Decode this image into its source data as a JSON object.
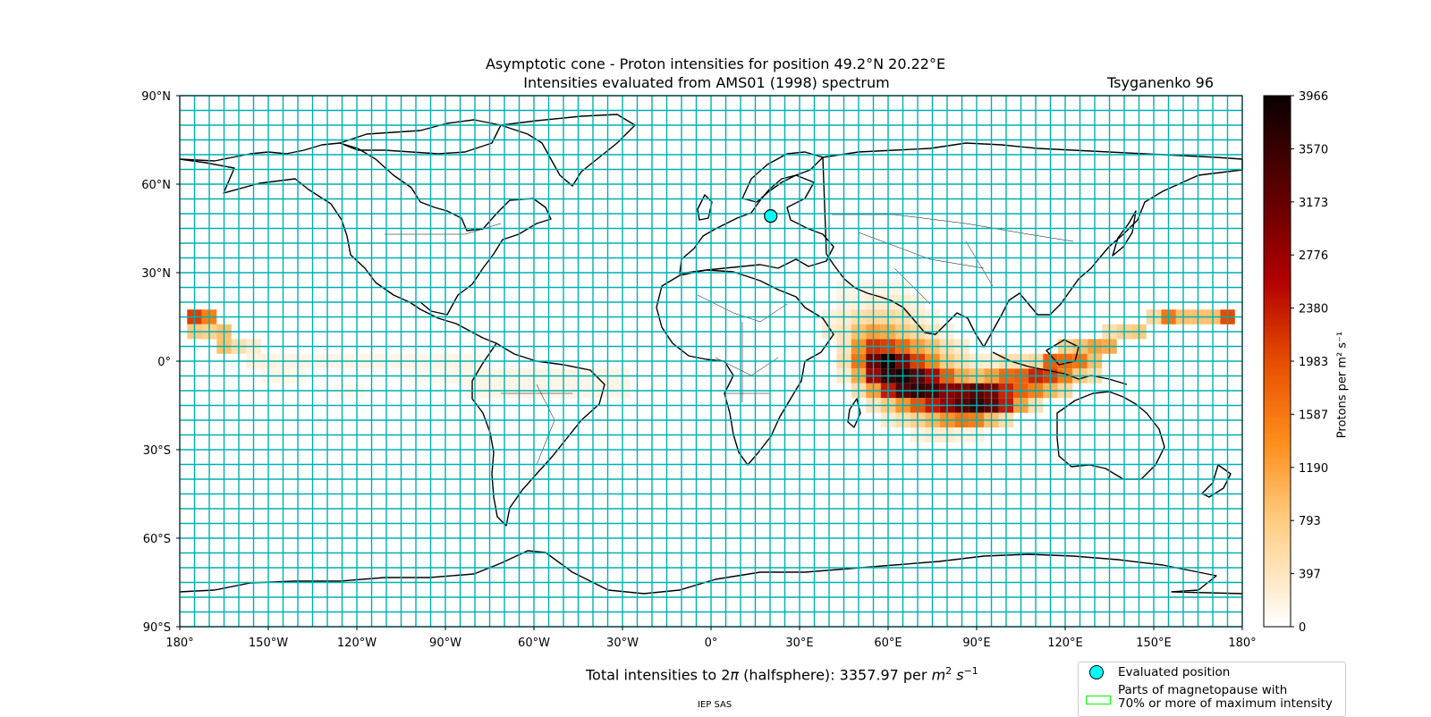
{
  "title_line1": "Asymptotic cone - Proton intensities for position 49.2°N 20.22°E",
  "title_line2": "Intensities evaluated from AMS01 (1998) spectrum",
  "model": "Tsyganenko 96",
  "total_intensity": {
    "prefix": "Total intensities to 2",
    "pi": "π",
    "middle": " (halfsphere): 3357.97 per ",
    "unit_m": "m",
    "unit_m_exp": "2",
    "unit_s": " s",
    "unit_s_exp": "−1"
  },
  "credit": "IEP SAS",
  "legend": {
    "evaluated_position": "Evaluated position",
    "magnetopause_line1": "Parts of magnetopause with",
    "magnetopause_line2": "70% or more of maximum intensity"
  },
  "colorbar": {
    "label": "Protons per m² s⁻¹",
    "ticks": [
      "0",
      "397",
      "793",
      "1190",
      "1587",
      "1983",
      "2380",
      "2776",
      "3173",
      "3570",
      "3966"
    ],
    "min": 0,
    "max": 3966,
    "colormap": "gist_heat_r"
  },
  "axes": {
    "lon_ticks": [
      "180°",
      "150°W",
      "120°W",
      "90°W",
      "60°W",
      "30°W",
      "0°",
      "30°E",
      "60°E",
      "90°E",
      "120°E",
      "150°E",
      "180°"
    ],
    "lat_ticks": [
      "90°N",
      "60°N",
      "30°N",
      "0°",
      "30°S",
      "60°S",
      "90°S"
    ],
    "lon_range": [
      -180,
      180
    ],
    "lat_range": [
      -90,
      90
    ]
  },
  "evaluated_position": {
    "lat": 49.2,
    "lon": 20.22
  },
  "colors": {
    "grid_lines": "#00b0b0",
    "evaluated_marker": "#00ffff",
    "magnetopause_outline": "#00ff00",
    "coastlines": "#000000"
  },
  "intensity_cells": {
    "cell_deg": 5,
    "cells": [
      [
        15,
        -175,
        2100
      ],
      [
        15,
        -170,
        1500
      ],
      [
        15,
        175,
        2000
      ],
      [
        15,
        170,
        900
      ],
      [
        15,
        165,
        900
      ],
      [
        15,
        160,
        900
      ],
      [
        15,
        155,
        1600
      ],
      [
        15,
        150,
        600
      ],
      [
        10,
        -175,
        800
      ],
      [
        10,
        -170,
        1500
      ],
      [
        10,
        -165,
        900
      ],
      [
        10,
        -170,
        700
      ],
      [
        10,
        145,
        800
      ],
      [
        10,
        140,
        700
      ],
      [
        10,
        135,
        500
      ],
      [
        10,
        140,
        700
      ],
      [
        5,
        -165,
        900
      ],
      [
        5,
        -160,
        500
      ],
      [
        5,
        -155,
        300
      ],
      [
        5,
        130,
        1200
      ],
      [
        5,
        125,
        900
      ],
      [
        5,
        120,
        700
      ],
      [
        5,
        135,
        1100
      ],
      [
        0,
        -155,
        200
      ],
      [
        0,
        -150,
        200
      ],
      [
        0,
        -145,
        150
      ],
      [
        0,
        -140,
        150
      ],
      [
        0,
        -135,
        150
      ],
      [
        0,
        -130,
        150
      ],
      [
        0,
        -125,
        150
      ],
      [
        0,
        -120,
        150
      ],
      [
        0,
        -115,
        150
      ],
      [
        0,
        -110,
        150
      ],
      [
        0,
        -105,
        150
      ],
      [
        0,
        -100,
        150
      ],
      [
        0,
        -95,
        150
      ],
      [
        0,
        -90,
        150
      ],
      [
        0,
        -85,
        150
      ],
      [
        0,
        -80,
        150
      ],
      [
        0,
        110,
        600
      ],
      [
        0,
        115,
        1800
      ],
      [
        0,
        120,
        1700
      ],
      [
        0,
        125,
        1600
      ],
      [
        0,
        130,
        900
      ],
      [
        -5,
        -150,
        150
      ],
      [
        -5,
        -145,
        150
      ],
      [
        -5,
        -140,
        100
      ],
      [
        -5,
        -100,
        100
      ],
      [
        -5,
        -95,
        100
      ],
      [
        -5,
        -90,
        120
      ],
      [
        -5,
        -85,
        150
      ],
      [
        -5,
        -80,
        150
      ],
      [
        -5,
        -75,
        150
      ],
      [
        -5,
        -70,
        150
      ],
      [
        -5,
        -65,
        150
      ],
      [
        -5,
        -60,
        150
      ],
      [
        -5,
        -55,
        150
      ],
      [
        -5,
        -50,
        150
      ],
      [
        -5,
        -45,
        150
      ],
      [
        -5,
        -40,
        150
      ],
      [
        -5,
        -35,
        150
      ],
      [
        -5,
        -30,
        150
      ],
      [
        -5,
        100,
        1700
      ],
      [
        -5,
        105,
        1800
      ],
      [
        -5,
        110,
        2300
      ],
      [
        -5,
        115,
        2100
      ],
      [
        -5,
        120,
        1500
      ],
      [
        -5,
        125,
        800
      ],
      [
        -5,
        130,
        500
      ],
      [
        -10,
        -125,
        100
      ],
      [
        -10,
        -120,
        100
      ],
      [
        -10,
        -80,
        150
      ],
      [
        -10,
        -75,
        150
      ],
      [
        -10,
        -70,
        150
      ],
      [
        -10,
        -65,
        150
      ],
      [
        -10,
        -60,
        150
      ],
      [
        -10,
        -55,
        150
      ],
      [
        -10,
        -50,
        150
      ],
      [
        -10,
        -45,
        150
      ],
      [
        -10,
        -40,
        150
      ],
      [
        -10,
        -35,
        150
      ],
      [
        -10,
        -30,
        150
      ],
      [
        25,
        45,
        150
      ],
      [
        25,
        50,
        150
      ],
      [
        25,
        55,
        150
      ],
      [
        25,
        60,
        150
      ],
      [
        25,
        65,
        150
      ],
      [
        20,
        45,
        200
      ],
      [
        20,
        50,
        200
      ],
      [
        20,
        55,
        300
      ],
      [
        20,
        60,
        300
      ],
      [
        20,
        65,
        300
      ],
      [
        20,
        70,
        200
      ],
      [
        15,
        40,
        200
      ],
      [
        15,
        45,
        300
      ],
      [
        15,
        50,
        500
      ],
      [
        15,
        55,
        600
      ],
      [
        15,
        60,
        600
      ],
      [
        15,
        65,
        500
      ],
      [
        15,
        70,
        300
      ],
      [
        15,
        75,
        200
      ],
      [
        10,
        40,
        300
      ],
      [
        10,
        45,
        400
      ],
      [
        10,
        50,
        900
      ],
      [
        10,
        55,
        1200
      ],
      [
        10,
        60,
        1100
      ],
      [
        10,
        65,
        800
      ],
      [
        10,
        70,
        600
      ],
      [
        10,
        75,
        400
      ],
      [
        10,
        80,
        200
      ],
      [
        5,
        45,
        400
      ],
      [
        5,
        50,
        1300
      ],
      [
        5,
        55,
        2200
      ],
      [
        5,
        60,
        2100
      ],
      [
        5,
        65,
        1700
      ],
      [
        5,
        70,
        1200
      ],
      [
        5,
        75,
        900
      ],
      [
        5,
        80,
        500
      ],
      [
        5,
        85,
        300
      ],
      [
        0,
        45,
        500
      ],
      [
        0,
        50,
        1600
      ],
      [
        0,
        55,
        3100
      ],
      [
        0,
        60,
        3900
      ],
      [
        0,
        65,
        3000
      ],
      [
        0,
        70,
        2100
      ],
      [
        0,
        75,
        1400
      ],
      [
        0,
        80,
        800
      ],
      [
        0,
        85,
        500
      ],
      [
        0,
        90,
        300
      ],
      [
        0,
        95,
        300
      ],
      [
        0,
        100,
        500
      ],
      [
        0,
        105,
        500
      ],
      [
        -5,
        45,
        300
      ],
      [
        -5,
        50,
        1100
      ],
      [
        -5,
        55,
        2700
      ],
      [
        -5,
        60,
        3600
      ],
      [
        -5,
        65,
        3800
      ],
      [
        -5,
        70,
        3300
      ],
      [
        -5,
        75,
        2600
      ],
      [
        -5,
        80,
        1800
      ],
      [
        -5,
        85,
        1100
      ],
      [
        -5,
        90,
        900
      ],
      [
        -5,
        95,
        1200
      ],
      [
        -10,
        50,
        500
      ],
      [
        -10,
        55,
        1200
      ],
      [
        -10,
        60,
        2400
      ],
      [
        -10,
        65,
        3300
      ],
      [
        -10,
        70,
        3600
      ],
      [
        -10,
        75,
        3400
      ],
      [
        -10,
        80,
        2900
      ],
      [
        -10,
        85,
        3000
      ],
      [
        -10,
        90,
        3300
      ],
      [
        -10,
        95,
        3000
      ],
      [
        -10,
        100,
        2300
      ],
      [
        -10,
        105,
        1800
      ],
      [
        -10,
        110,
        1500
      ],
      [
        -10,
        115,
        1000
      ],
      [
        -10,
        120,
        600
      ],
      [
        -15,
        55,
        400
      ],
      [
        -15,
        60,
        800
      ],
      [
        -15,
        65,
        1300
      ],
      [
        -15,
        70,
        1900
      ],
      [
        -15,
        75,
        2400
      ],
      [
        -15,
        80,
        2800
      ],
      [
        -15,
        85,
        3300
      ],
      [
        -15,
        90,
        3600
      ],
      [
        -15,
        95,
        3200
      ],
      [
        -15,
        100,
        2400
      ],
      [
        -15,
        105,
        1200
      ],
      [
        -15,
        110,
        500
      ],
      [
        -20,
        60,
        300
      ],
      [
        -20,
        65,
        500
      ],
      [
        -20,
        70,
        700
      ],
      [
        -20,
        75,
        1000
      ],
      [
        -20,
        80,
        1300
      ],
      [
        -20,
        85,
        1600
      ],
      [
        -20,
        90,
        1500
      ],
      [
        -20,
        95,
        900
      ],
      [
        -20,
        100,
        500
      ],
      [
        -25,
        70,
        200
      ],
      [
        -25,
        75,
        300
      ],
      [
        -25,
        80,
        300
      ],
      [
        -25,
        85,
        200
      ],
      [
        -25,
        90,
        200
      ]
    ]
  }
}
